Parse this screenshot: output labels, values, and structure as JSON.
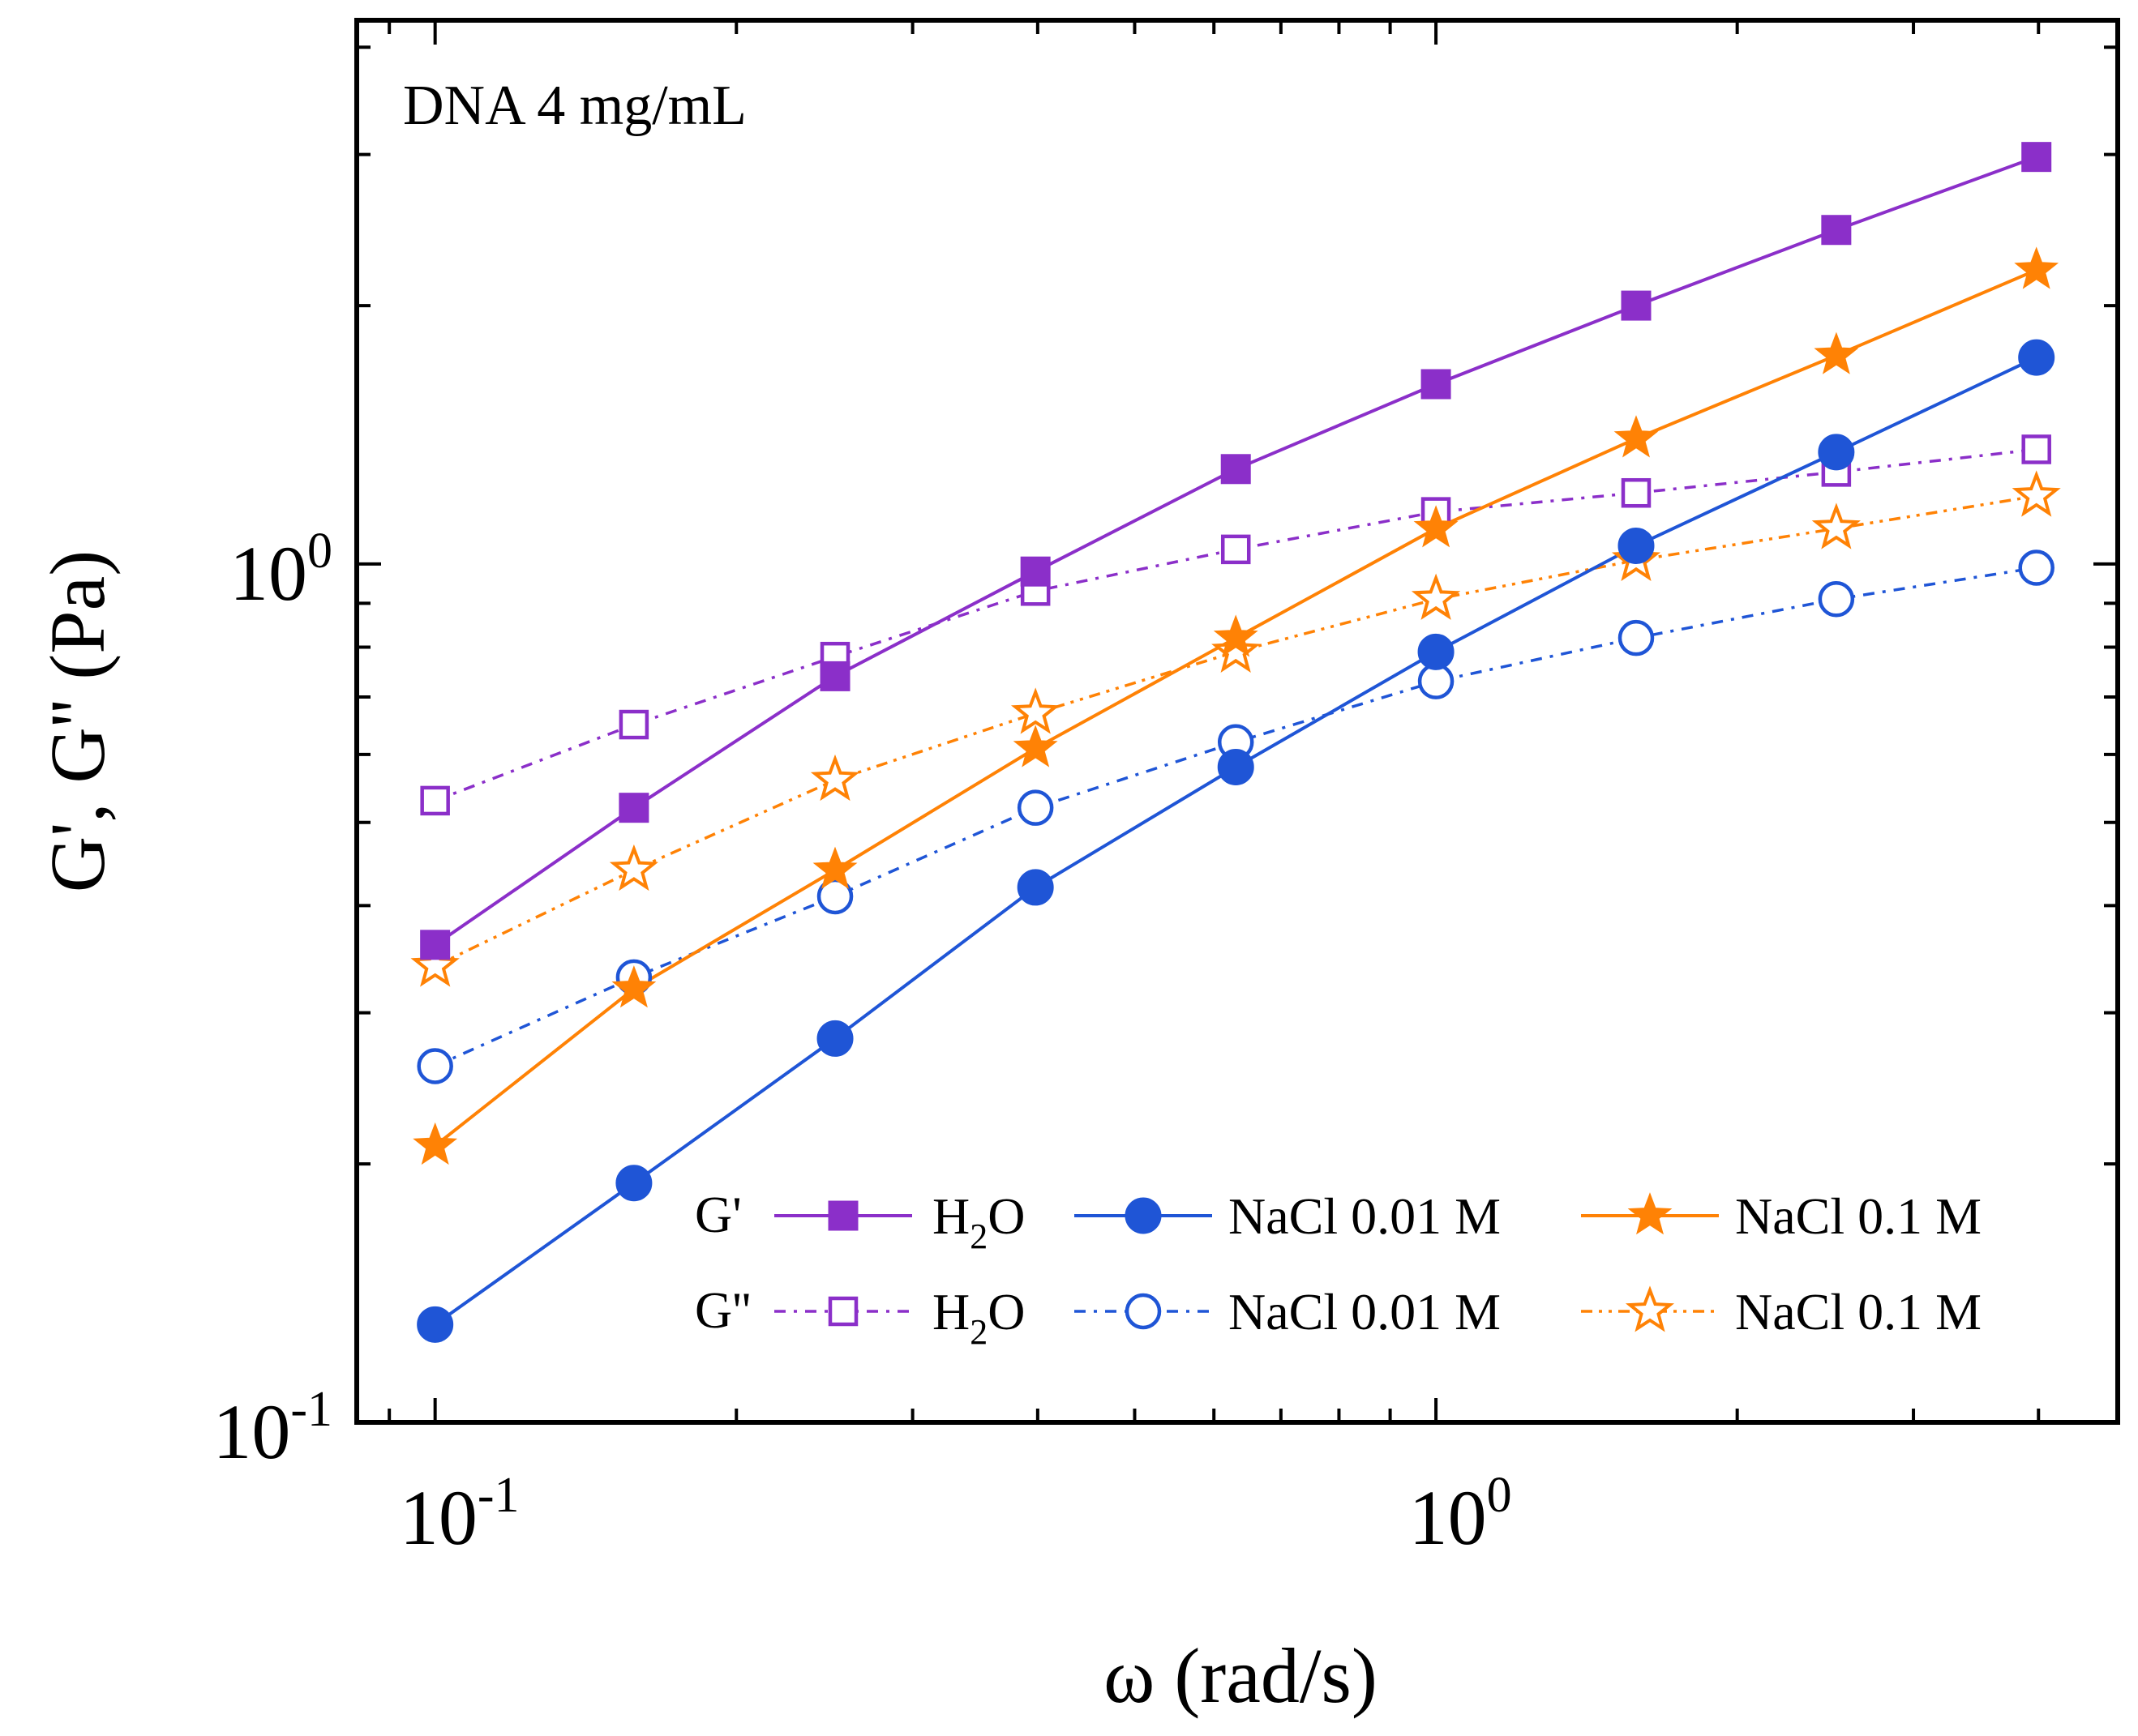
{
  "chart_data": {
    "type": "line",
    "annotation": "DNA 4 mg/mL",
    "xlabel": "ω (rad/s)",
    "ylabel": "G', G'' (Pa)",
    "xscale": "log",
    "yscale": "log",
    "xlim": [
      0.0835,
      4.8
    ],
    "ylim": [
      0.1,
      4.3
    ],
    "x_ticks": [
      {
        "base": "10",
        "exp": "-1"
      },
      {
        "base": "10",
        "exp": "0"
      }
    ],
    "y_ticks": [
      {
        "base": "10",
        "exp": "-1"
      },
      {
        "base": "10",
        "exp": "0"
      }
    ],
    "x": [
      0.1,
      0.158,
      0.251,
      0.398,
      0.631,
      1.0,
      1.585,
      2.512,
      3.981
    ],
    "legend_rows": [
      {
        "row_label": "G'"
      },
      {
        "row_label": "G''"
      }
    ],
    "legend_placement": "bottom-right",
    "series": [
      {
        "name": "H2O",
        "label_main": "H",
        "label_sub": "2",
        "label_tail": "O",
        "modulus": "G'",
        "color": "#8b2fc9",
        "marker": "square",
        "filled": true,
        "line": "solid",
        "values": [
          0.36,
          0.52,
          0.74,
          0.98,
          1.29,
          1.62,
          2.0,
          2.45,
          2.98
        ]
      },
      {
        "name": "NaCl 0.01 M",
        "label_main": "NaCl 0.01 M",
        "label_sub": "",
        "label_tail": "",
        "modulus": "G'",
        "color": "#1f55d6",
        "marker": "circle",
        "filled": true,
        "line": "solid",
        "values": [
          0.13,
          0.19,
          0.28,
          0.42,
          0.58,
          0.79,
          1.05,
          1.35,
          1.74
        ]
      },
      {
        "name": "NaCl 0.1 M",
        "label_main": "NaCl 0.1 M",
        "label_sub": "",
        "label_tail": "",
        "modulus": "G'",
        "color": "#ff8205",
        "marker": "star",
        "filled": true,
        "line": "solid",
        "values": [
          0.21,
          0.32,
          0.44,
          0.61,
          0.82,
          1.1,
          1.4,
          1.75,
          2.2
        ]
      },
      {
        "name": "H2O",
        "label_main": "H",
        "label_sub": "2",
        "label_tail": "O",
        "modulus": "G''",
        "color": "#8b2fc9",
        "marker": "square",
        "filled": false,
        "line": "dashdot",
        "values": [
          0.53,
          0.65,
          0.78,
          0.93,
          1.04,
          1.15,
          1.21,
          1.28,
          1.36
        ]
      },
      {
        "name": "NaCl 0.01 M",
        "label_main": "NaCl 0.01 M",
        "label_sub": "",
        "label_tail": "",
        "modulus": "G''",
        "color": "#1f55d6",
        "marker": "circle",
        "filled": false,
        "line": "dashdot",
        "values": [
          0.26,
          0.33,
          0.41,
          0.52,
          0.62,
          0.73,
          0.82,
          0.91,
          0.99
        ]
      },
      {
        "name": "NaCl 0.1 M",
        "label_main": "NaCl 0.1 M",
        "label_sub": "",
        "label_tail": "",
        "modulus": "G''",
        "color": "#ff8205",
        "marker": "star",
        "filled": false,
        "line": "dashdotdot",
        "values": [
          0.34,
          0.44,
          0.56,
          0.67,
          0.79,
          0.91,
          1.01,
          1.1,
          1.2
        ]
      }
    ]
  }
}
